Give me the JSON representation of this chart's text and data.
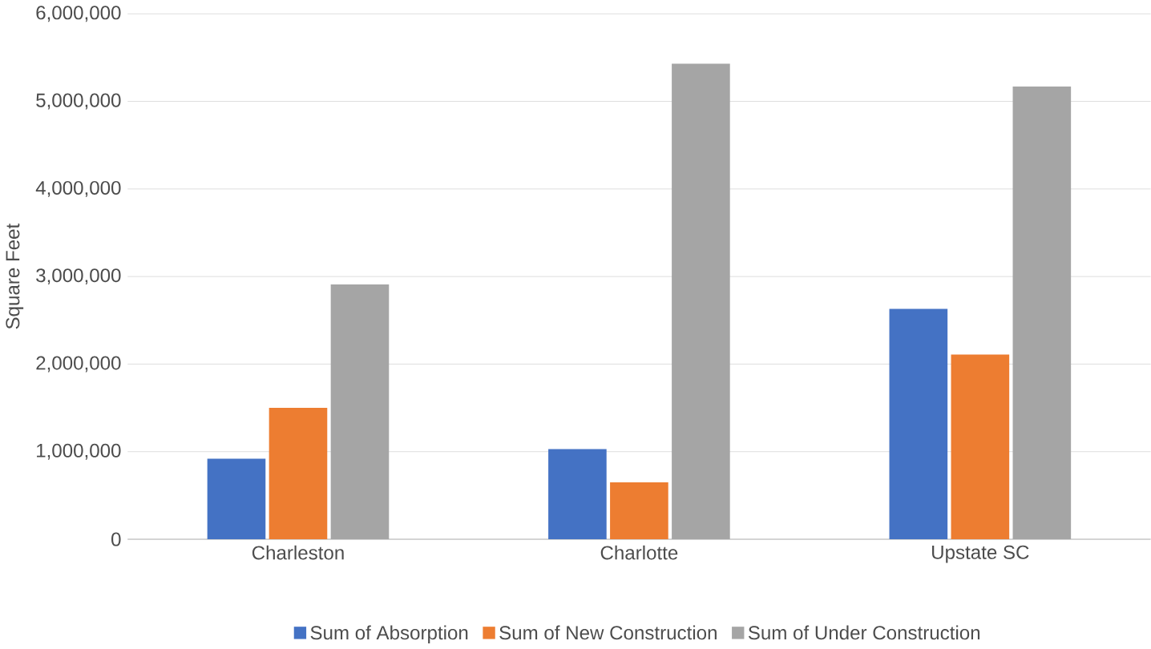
{
  "chart_data": {
    "type": "bar",
    "ylabel": "Square Feet",
    "categories": [
      "Charleston",
      "Charlotte",
      "Upstate SC"
    ],
    "series": [
      {
        "name": "Sum of Absorption",
        "color": "#4472c4",
        "values": [
          920000,
          1030000,
          2630000
        ]
      },
      {
        "name": "Sum of New Construction",
        "color": "#ed7d31",
        "values": [
          1500000,
          650000,
          2110000
        ]
      },
      {
        "name": "Sum of Under Construction",
        "color": "#a5a5a5",
        "values": [
          2910000,
          5430000,
          5170000
        ]
      }
    ],
    "ylim": [
      0,
      6000000
    ],
    "yticks": [
      {
        "value": 0,
        "label": "0"
      },
      {
        "value": 1000000,
        "label": "1,000,000"
      },
      {
        "value": 2000000,
        "label": "2,000,000"
      },
      {
        "value": 3000000,
        "label": "3,000,000"
      },
      {
        "value": 4000000,
        "label": "4,000,000"
      },
      {
        "value": 5000000,
        "label": "5,000,000"
      },
      {
        "value": 6000000,
        "label": "6,000,000"
      }
    ],
    "grid": "y",
    "legend": "bottom"
  }
}
